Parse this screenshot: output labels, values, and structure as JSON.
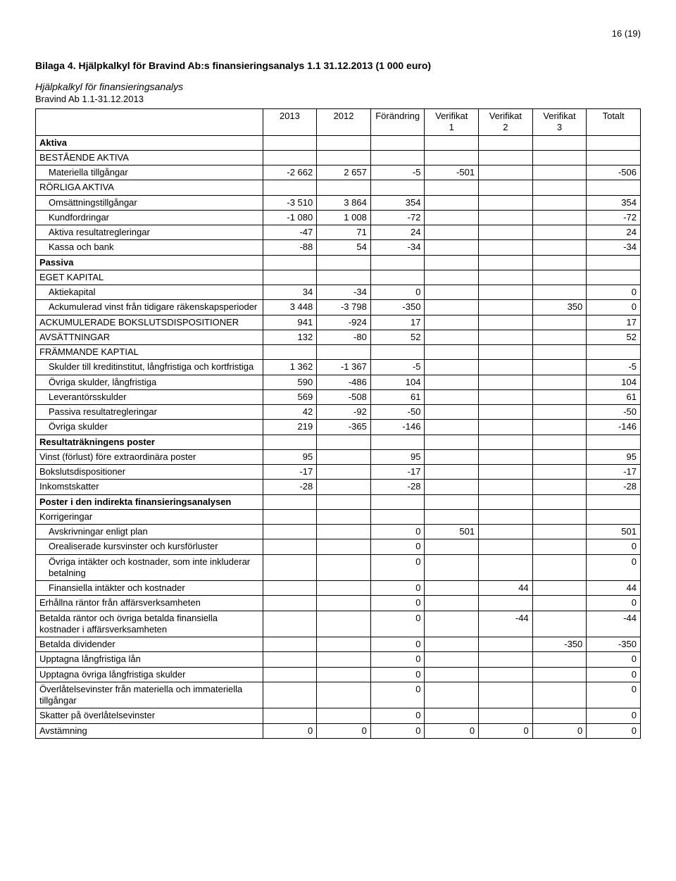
{
  "page_number": "16 (19)",
  "title": "Bilaga 4. Hjälpkalkyl för Bravind Ab:s finansieringsanalys 1.1 31.12.2013 (1 000 euro)",
  "subtitle": "Hjälpkalkyl för finansieringsanalys",
  "subtitle2": "Bravind Ab 1.1-31.12.2013",
  "columns": [
    "",
    "2013",
    "2012",
    "Förändring",
    "Verifikat 1",
    "Verifikat 2",
    "Verifikat 3",
    "Totalt"
  ],
  "rows": [
    {
      "label": "Aktiva",
      "bold": true,
      "cells": [
        "",
        "",
        "",
        "",
        "",
        "",
        ""
      ]
    },
    {
      "label": "BESTÅENDE AKTIVA",
      "cells": [
        "",
        "",
        "",
        "",
        "",
        "",
        ""
      ]
    },
    {
      "label": "Materiella tillgångar",
      "indent": 1,
      "cells": [
        "-2 662",
        "2 657",
        "-5",
        "-501",
        "",
        "",
        "-506"
      ]
    },
    {
      "label": "RÖRLIGA AKTIVA",
      "cells": [
        "",
        "",
        "",
        "",
        "",
        "",
        ""
      ]
    },
    {
      "label": "Omsättningstillgångar",
      "indent": 1,
      "cells": [
        "-3 510",
        "3 864",
        "354",
        "",
        "",
        "",
        "354"
      ]
    },
    {
      "label": "Kundfordringar",
      "indent": 1,
      "cells": [
        "-1 080",
        "1 008",
        "-72",
        "",
        "",
        "",
        "-72"
      ]
    },
    {
      "label": "Aktiva resultatregleringar",
      "indent": 1,
      "cells": [
        "-47",
        "71",
        "24",
        "",
        "",
        "",
        "24"
      ]
    },
    {
      "label": "Kassa och bank",
      "indent": 1,
      "cells": [
        "-88",
        "54",
        "-34",
        "",
        "",
        "",
        "-34"
      ]
    },
    {
      "label": "Passiva",
      "bold": true,
      "cells": [
        "",
        "",
        "",
        "",
        "",
        "",
        ""
      ]
    },
    {
      "label": "EGET KAPITAL",
      "cells": [
        "",
        "",
        "",
        "",
        "",
        "",
        ""
      ]
    },
    {
      "label": "Aktiekapital",
      "indent": 1,
      "cells": [
        "34",
        "-34",
        "0",
        "",
        "",
        "",
        "0"
      ]
    },
    {
      "label": "Ackumulerad vinst från tidigare räkenskapsperioder",
      "indent": 1,
      "cells": [
        "3 448",
        "-3 798",
        "-350",
        "",
        "",
        "350",
        "0"
      ]
    },
    {
      "label": "ACKUMULERADE BOKSLUTSDISPOSITIONER",
      "cells": [
        "941",
        "-924",
        "17",
        "",
        "",
        "",
        "17"
      ]
    },
    {
      "label": "AVSÄTTNINGAR",
      "cells": [
        "132",
        "-80",
        "52",
        "",
        "",
        "",
        "52"
      ]
    },
    {
      "label": "FRÄMMANDE KAPTIAL",
      "cells": [
        "",
        "",
        "",
        "",
        "",
        "",
        ""
      ]
    },
    {
      "label": "Skulder till kreditinstitut, långfristiga och kortfristiga",
      "indent": 1,
      "cells": [
        "1 362",
        "-1 367",
        "-5",
        "",
        "",
        "",
        "-5"
      ]
    },
    {
      "label": "Övriga skulder, långfristiga",
      "indent": 1,
      "cells": [
        "590",
        "-486",
        "104",
        "",
        "",
        "",
        "104"
      ]
    },
    {
      "label": "Leverantörsskulder",
      "indent": 1,
      "cells": [
        "569",
        "-508",
        "61",
        "",
        "",
        "",
        "61"
      ]
    },
    {
      "label": "Passiva resultatregleringar",
      "indent": 1,
      "cells": [
        "42",
        "-92",
        "-50",
        "",
        "",
        "",
        "-50"
      ]
    },
    {
      "label": "Övriga skulder",
      "indent": 1,
      "cells": [
        "219",
        "-365",
        "-146",
        "",
        "",
        "",
        "-146"
      ]
    },
    {
      "label": "Resultaträkningens poster",
      "bold": true,
      "cells": [
        "",
        "",
        "",
        "",
        "",
        "",
        ""
      ]
    },
    {
      "label": "Vinst (förlust) före extraordinära poster",
      "cells": [
        "95",
        "",
        "95",
        "",
        "",
        "",
        "95"
      ]
    },
    {
      "label": "Bokslutsdispositioner",
      "cells": [
        "-17",
        "",
        "-17",
        "",
        "",
        "",
        "-17"
      ]
    },
    {
      "label": "Inkomstskatter",
      "cells": [
        "-28",
        "",
        "-28",
        "",
        "",
        "",
        "-28"
      ]
    },
    {
      "label": "Poster i den indirekta finansieringsanalysen",
      "bold": true,
      "cells": [
        "",
        "",
        "",
        "",
        "",
        "",
        ""
      ]
    },
    {
      "label": "Korrigeringar",
      "cells": [
        "",
        "",
        "",
        "",
        "",
        "",
        ""
      ]
    },
    {
      "label": "Avskrivningar enligt plan",
      "indent": 1,
      "cells": [
        "",
        "",
        "0",
        "501",
        "",
        "",
        "501"
      ]
    },
    {
      "label": "Orealiserade kursvinster och kursförluster",
      "indent": 1,
      "cells": [
        "",
        "",
        "0",
        "",
        "",
        "",
        "0"
      ]
    },
    {
      "label": "Övriga intäkter och kostnader, som inte inkluderar betalning",
      "indent": 1,
      "cells": [
        "",
        "",
        "0",
        "",
        "",
        "",
        "0"
      ]
    },
    {
      "label": "Finansiella intäkter och kostnader",
      "indent": 1,
      "cells": [
        "",
        "",
        "0",
        "",
        "44",
        "",
        "44"
      ]
    },
    {
      "label": "Erhållna räntor från affärsverksamheten",
      "cells": [
        "",
        "",
        "0",
        "",
        "",
        "",
        "0"
      ]
    },
    {
      "label": "Betalda räntor och övriga betalda finansiella kostnader i affärsverksamheten",
      "cells": [
        "",
        "",
        "0",
        "",
        "-44",
        "",
        "-44"
      ]
    },
    {
      "label": "Betalda dividender",
      "cells": [
        "",
        "",
        "0",
        "",
        "",
        "-350",
        "-350"
      ]
    },
    {
      "label": "Upptagna långfristiga lån",
      "cells": [
        "",
        "",
        "0",
        "",
        "",
        "",
        "0"
      ]
    },
    {
      "label": "Upptagna övriga långfristiga skulder",
      "cells": [
        "",
        "",
        "0",
        "",
        "",
        "",
        "0"
      ]
    },
    {
      "label": "Överlåtelsevinster från materiella och immateriella tillgångar",
      "cells": [
        "",
        "",
        "0",
        "",
        "",
        "",
        "0"
      ]
    },
    {
      "label": "Skatter på överlåtelsevinster",
      "cells": [
        "",
        "",
        "0",
        "",
        "",
        "",
        "0"
      ]
    },
    {
      "label": "Avstämning",
      "cells": [
        "0",
        "0",
        "0",
        "0",
        "0",
        "0",
        "0"
      ]
    }
  ]
}
